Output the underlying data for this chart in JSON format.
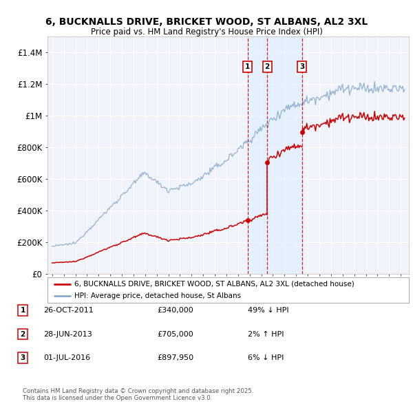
{
  "title_line1": "6, BUCKNALLS DRIVE, BRICKET WOOD, ST ALBANS, AL2 3XL",
  "title_line2": "Price paid vs. HM Land Registry's House Price Index (HPI)",
  "sale_color": "#cc0000",
  "hpi_color": "#88aacc",
  "vline_color": "#cc0000",
  "shade_color": "#ddeeff",
  "sale_dates": [
    2011.833,
    2013.5,
    2016.5
  ],
  "sale_prices": [
    340000,
    705000,
    897950
  ],
  "sale_labels": [
    "1",
    "2",
    "3"
  ],
  "transaction_info": [
    {
      "label": "1",
      "date": "26-OCT-2011",
      "price": "£340,000",
      "hpi": "49% ↓ HPI"
    },
    {
      "label": "2",
      "date": "28-JUN-2013",
      "price": "£705,000",
      "hpi": "2% ↑ HPI"
    },
    {
      "label": "3",
      "date": "01-JUL-2016",
      "price": "£897,950",
      "hpi": "6% ↓ HPI"
    }
  ],
  "yticks": [
    0,
    200000,
    400000,
    600000,
    800000,
    1000000,
    1200000,
    1400000
  ],
  "ytick_labels": [
    "£0",
    "£200K",
    "£400K",
    "£600K",
    "£800K",
    "£1M",
    "£1.2M",
    "£1.4M"
  ],
  "footnote": "Contains HM Land Registry data © Crown copyright and database right 2025.\nThis data is licensed under the Open Government Licence v3.0.",
  "bg_color": "#ffffff",
  "plot_bg_color": "#f0f4fa"
}
